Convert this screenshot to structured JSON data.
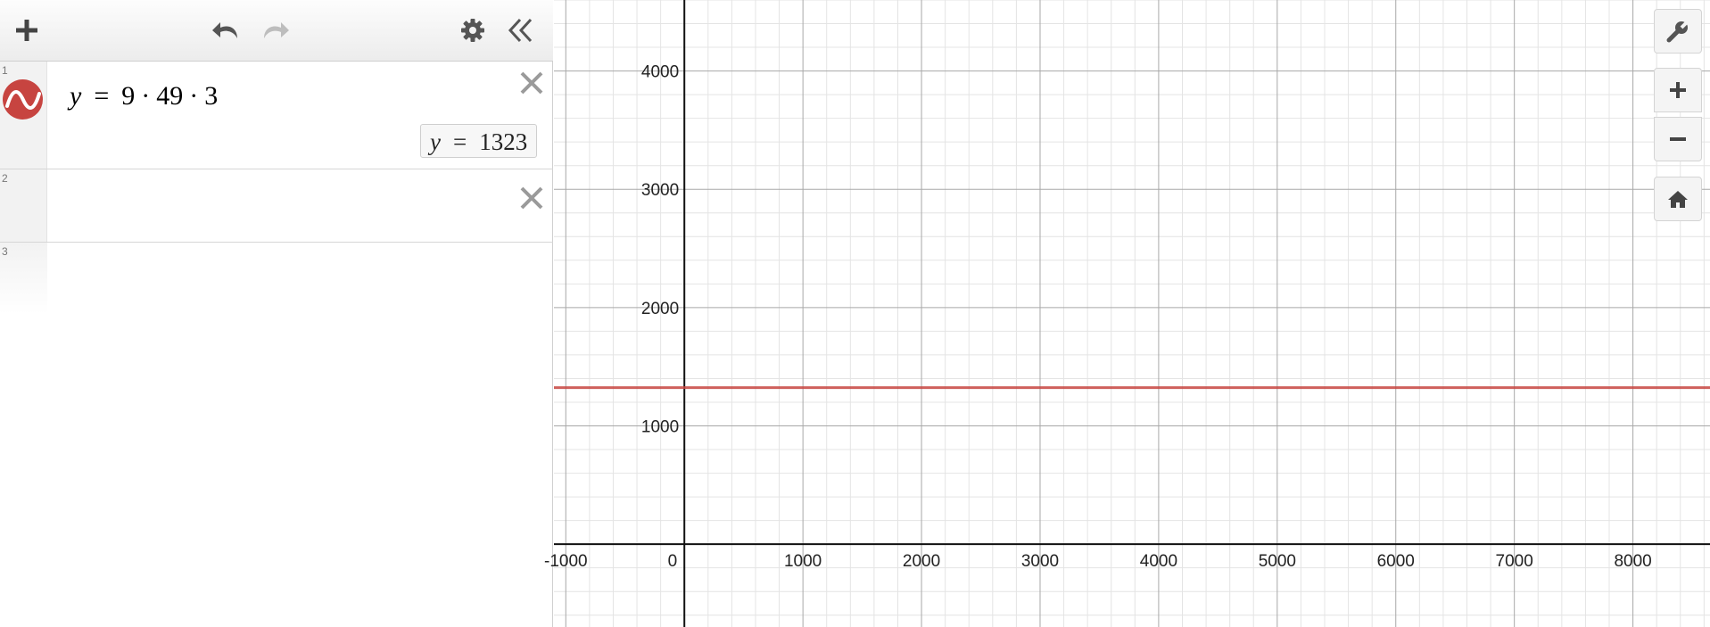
{
  "toolbar": {
    "add_icon": "plus-icon",
    "undo_icon": "undo-icon",
    "redo_icon": "redo-icon",
    "settings_icon": "gear-icon",
    "collapse_icon": "double-chevron-left-icon"
  },
  "expressions": [
    {
      "index": "1",
      "color": "#c74440",
      "lhs": "y",
      "eq": "=",
      "terms": [
        "9",
        "49",
        "3"
      ],
      "evaluation": {
        "lhs": "y",
        "eq": "=",
        "value": "1323"
      }
    },
    {
      "index": "2"
    },
    {
      "index": "3"
    }
  ],
  "controls": {
    "settings_icon": "wrench-icon",
    "zoom_in_icon": "plus-icon",
    "zoom_out_icon": "minus-icon",
    "home_icon": "home-icon"
  },
  "chart_data": {
    "type": "line",
    "xlim": [
      -1100,
      8650
    ],
    "ylim": [
      -700,
      4600
    ],
    "x_ticks": [
      -1000,
      0,
      1000,
      2000,
      3000,
      4000,
      5000,
      6000,
      7000,
      8000
    ],
    "y_ticks": [
      1000,
      2000,
      3000,
      4000
    ],
    "grid": true,
    "series": [
      {
        "color": "#c74440",
        "x": [
          -1100,
          8650
        ],
        "y": [
          1323,
          1323
        ]
      }
    ]
  }
}
